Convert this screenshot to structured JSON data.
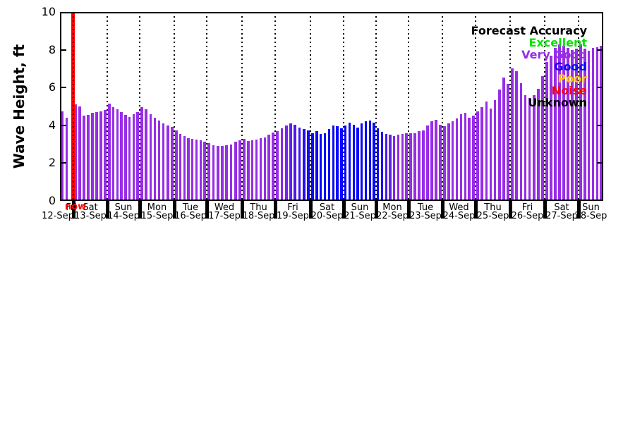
{
  "figure": {
    "background": "#ffffff"
  },
  "axes": {
    "y_label": "Wave Height, ft",
    "y_ticks": [
      0,
      2,
      4,
      6,
      8,
      10
    ],
    "y_max": 10
  },
  "now_marker": {
    "label": "now",
    "color": "#ff0000"
  },
  "legend": {
    "title": "Forecast Accuracy",
    "items": [
      {
        "label": "Excellent",
        "color": "#00e400"
      },
      {
        "label": "Very Good",
        "color": "#982de6"
      },
      {
        "label": "Good",
        "color": "#0909fa"
      },
      {
        "label": "Poor",
        "color": "#ffc400"
      },
      {
        "label": "Noise",
        "color": "#ff0000"
      },
      {
        "label": "Unknown",
        "color": "#000000"
      }
    ]
  },
  "chart_data": {
    "type": "bar",
    "title": "",
    "ylabel": "Wave Height, ft",
    "ylim": [
      0,
      10
    ],
    "units": "ft",
    "grid": "vertical-dotted-daily",
    "legend_position": "top-right",
    "accuracy_color_map": {
      "very_good": "#982de6",
      "good": "#0909fa"
    },
    "days": [
      {
        "day": "Fri",
        "date": "12-Sep",
        "slots": 3,
        "heights": [
          4.75,
          4.4
        ],
        "color": "#982de6"
      },
      {
        "day": "Sat",
        "date": "13-Sep",
        "heights": [
          5.1,
          5.0,
          4.5,
          4.55,
          4.65,
          4.7,
          4.75,
          4.8
        ],
        "color": "#982de6"
      },
      {
        "day": "Sun",
        "date": "14-Sep",
        "heights": [
          5.15,
          4.95,
          4.85,
          4.7,
          4.55,
          4.45,
          4.6,
          4.7
        ],
        "color": "#982de6"
      },
      {
        "day": "Mon",
        "date": "15-Sep",
        "heights": [
          4.96,
          4.87,
          4.58,
          4.41,
          4.24,
          4.12,
          4.0,
          3.91
        ],
        "color": "#982de6"
      },
      {
        "day": "Tue",
        "date": "16-Sep",
        "heights": [
          3.75,
          3.56,
          3.43,
          3.33,
          3.28,
          3.25,
          3.21,
          3.12
        ],
        "color": "#982de6"
      },
      {
        "day": "Wed",
        "date": "17-Sep",
        "heights": [
          3.05,
          2.95,
          2.9,
          2.9,
          2.95,
          3.0,
          3.15,
          3.2
        ],
        "color": "#982de6"
      },
      {
        "day": "Thu",
        "date": "18-Sep",
        "heights": [
          3.27,
          3.18,
          3.22,
          3.25,
          3.31,
          3.37,
          3.5,
          3.62
        ],
        "color": "#982de6"
      },
      {
        "day": "Fri",
        "date": "19-Sep",
        "heights": [
          3.7,
          3.85,
          4.0,
          4.1,
          4.05,
          3.9,
          3.8,
          3.75
        ],
        "colors": [
          "#982de6",
          "#8928e8",
          "#7724ea",
          "#631fee",
          "#4f19f1",
          "#3b13f4",
          "#270df7",
          "#1409f9"
        ]
      },
      {
        "day": "Sat",
        "date": "20-Sep",
        "heights": [
          3.6,
          3.7,
          3.55,
          3.6,
          3.8,
          4.0,
          3.95,
          3.85
        ],
        "color": "#0909fa"
      },
      {
        "day": "Sun",
        "date": "21-Sep",
        "heights": [
          4.0,
          4.15,
          4.05,
          3.9,
          4.1,
          4.2,
          4.25,
          4.15
        ],
        "color": "#0909fa"
      },
      {
        "day": "Mon",
        "date": "22-Sep",
        "heights": [
          3.85,
          3.65,
          3.55,
          3.5,
          3.45,
          3.5,
          3.55,
          3.6
        ],
        "colors": [
          "#0909fa",
          "#2110f5",
          "#4318ef",
          "#6520eb",
          "#8026e8",
          "#9029e7",
          "#982de6",
          "#982de6"
        ]
      },
      {
        "day": "Tue",
        "date": "23-Sep",
        "heights": [
          3.6,
          3.6,
          3.7,
          3.75,
          4.0,
          4.2,
          4.3,
          4.05
        ],
        "color": "#982de6"
      },
      {
        "day": "Wed",
        "date": "24-Sep",
        "heights": [
          3.95,
          4.1,
          4.2,
          4.35,
          4.6,
          4.65,
          4.4,
          4.5
        ],
        "color": "#982de6"
      },
      {
        "day": "Thu",
        "date": "25-Sep",
        "heights": [
          4.75,
          4.95,
          5.25,
          4.9,
          5.35,
          5.9,
          6.55,
          6.2
        ],
        "color": "#982de6"
      },
      {
        "day": "Fri",
        "date": "26-Sep",
        "heights": [
          7.0,
          6.85,
          6.25,
          5.6,
          5.45,
          5.6,
          5.95,
          6.6
        ],
        "color": "#982de6"
      },
      {
        "day": "Sat",
        "date": "27-Sep",
        "heights": [
          7.35,
          7.7,
          8.1,
          8.3,
          8.2,
          8.1,
          8.0,
          8.05
        ],
        "color": "#982de6"
      },
      {
        "day": "Sun",
        "date": "28-Sep",
        "heights": [
          8.3,
          8.05,
          7.95,
          8.1,
          8.15,
          8.2
        ],
        "color": "#982de6"
      }
    ]
  }
}
